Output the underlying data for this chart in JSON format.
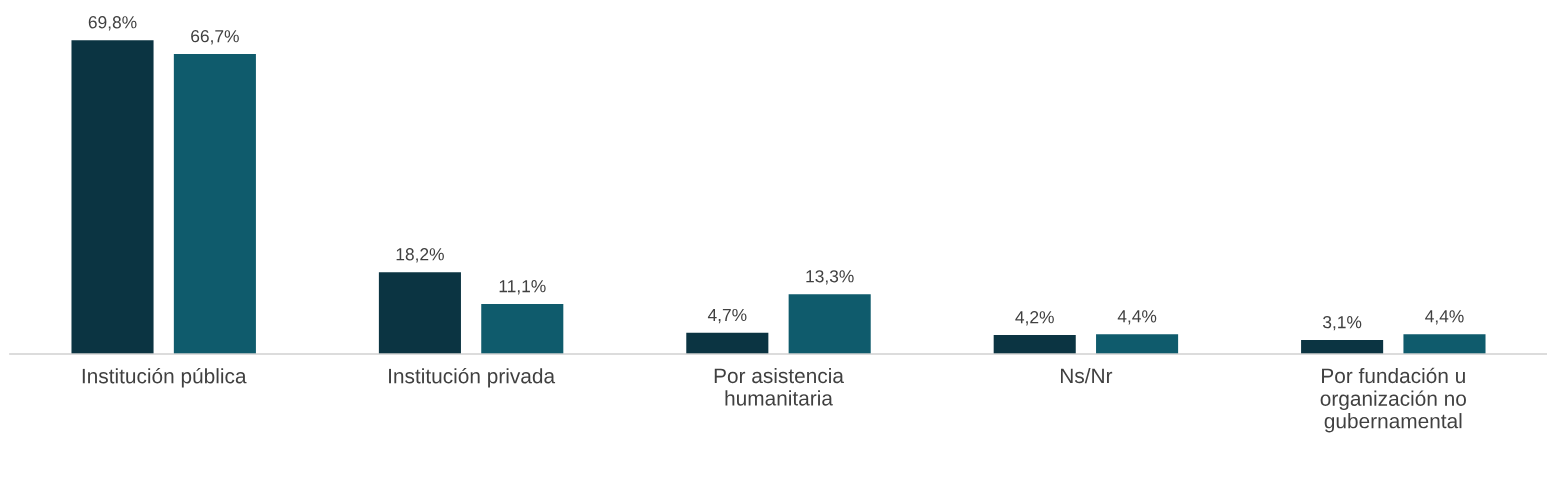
{
  "chart_data": {
    "type": "bar",
    "categories": [
      "Institución pública",
      "Institución privada",
      "Por asistencia\nhumanitaria",
      "Ns/Nr",
      "Por fundación u\norganización no\ngubernamental"
    ],
    "series": [
      {
        "color": "#0b3442",
        "values": [
          69.8,
          18.2,
          4.7,
          4.2,
          3.1
        ],
        "value_labels": [
          "69,8%",
          "18,2%",
          "4,7%",
          "4,2%",
          "3,1%"
        ]
      },
      {
        "color": "#0f5b6c",
        "values": [
          66.7,
          11.1,
          13.3,
          4.4,
          4.4
        ],
        "value_labels": [
          "66,7%",
          "11,1%",
          "13,3%",
          "4,4%",
          "4,4%"
        ]
      }
    ],
    "grid": false,
    "legend": false,
    "tick_labels": "x"
  }
}
